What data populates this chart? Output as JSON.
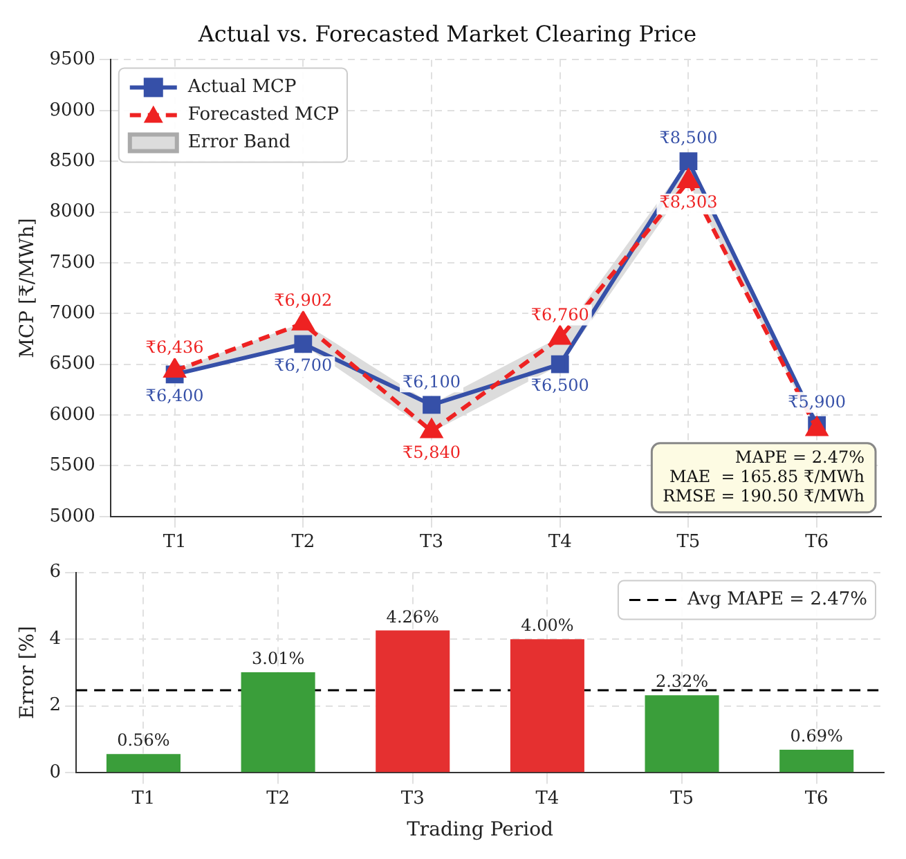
{
  "chart_data": [
    {
      "type": "line",
      "title": "Actual vs. Forecasted Market Clearing Price",
      "ylabel": "MCP [₹/MWh]",
      "categories": [
        "T1",
        "T2",
        "T3",
        "T4",
        "T5",
        "T6"
      ],
      "series": [
        {
          "name": "Actual MCP",
          "type": "line",
          "color": "#3650a8",
          "marker": "square",
          "line_style": "solid",
          "values": [
            6400,
            6700,
            6100,
            6500,
            8500,
            5900
          ],
          "value_labels": [
            "₹6,400",
            "₹6,700",
            "₹6,100",
            "₹6,500",
            "₹8,500",
            "₹5,900"
          ]
        },
        {
          "name": "Forecasted MCP",
          "type": "line",
          "color": "#ee2222",
          "marker": "triangle",
          "line_style": "dashed",
          "values": [
            6436,
            6902,
            5840,
            6760,
            8303,
            5860
          ],
          "lower": [
            6400,
            6700,
            5840,
            6500,
            8303,
            5860
          ],
          "upper": [
            6436,
            6902,
            6100,
            6760,
            8500,
            5900
          ],
          "value_labels": [
            "₹6,436",
            "₹6,902",
            "₹5,840",
            "₹6,760",
            "₹8,303",
            null
          ]
        },
        {
          "name": "Error Band",
          "type": "area",
          "color": "#dcdcdc",
          "values": [
            null,
            null,
            null,
            null,
            null,
            null
          ]
        }
      ],
      "ylim": [
        5000,
        9500
      ],
      "yticks": [
        5000,
        5500,
        6000,
        6500,
        7000,
        7500,
        8000,
        8500,
        9000,
        9500
      ],
      "grid": true,
      "legend": "top left",
      "annotations": [
        "MAPE = 2.47%",
        "MAE  = 165.85 ₹/MWh",
        "RMSE = 190.50 ₹/MWh"
      ]
    },
    {
      "type": "bar",
      "xlabel": "Trading Period",
      "ylabel": "Error [%]",
      "categories": [
        "T1",
        "T2",
        "T3",
        "T4",
        "T5",
        "T6"
      ],
      "values": [
        0.56,
        3.01,
        4.26,
        4.0,
        2.32,
        0.69
      ],
      "colors": [
        "#3a9e3a",
        "#3a9e3a",
        "#e53030",
        "#e53030",
        "#3a9e3a",
        "#3a9e3a"
      ],
      "value_labels": [
        "0.56%",
        "3.01%",
        "4.26%",
        "4.00%",
        "2.32%",
        "0.69%"
      ],
      "ylim": [
        0,
        6
      ],
      "yticks": [
        0,
        2,
        4,
        6
      ],
      "grid": true,
      "legend": "top right",
      "ref_lines": [
        {
          "axis": "y",
          "value": 2.47,
          "label": "Avg MAPE = 2.47%",
          "color": "#000000",
          "line_style": "dashed"
        }
      ]
    }
  ]
}
